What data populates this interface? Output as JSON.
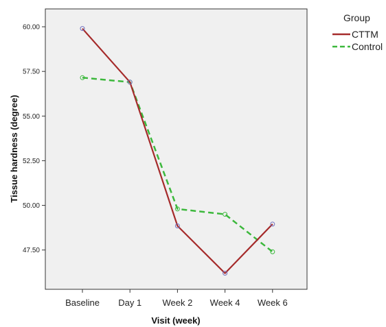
{
  "chart_data": {
    "type": "line",
    "categories": [
      "Baseline",
      "Day 1",
      "Week 2",
      "Week 4",
      "Week 6"
    ],
    "series": [
      {
        "name": "CTTM",
        "values": [
          59.9,
          56.9,
          48.85,
          46.2,
          48.95
        ],
        "color": "#a52a2a",
        "dash": "solid",
        "marker_color": "#6f6fbf"
      },
      {
        "name": "Control",
        "values": [
          57.15,
          56.9,
          49.8,
          49.5,
          47.4
        ],
        "color": "#3cb83c",
        "dash": "dashed",
        "marker_color": "#3cb83c"
      }
    ],
    "xlabel": "Visit (week)",
    "ylabel": "Tissue hardness (degree)",
    "yticks": [
      "60.00",
      "57.50",
      "55.00",
      "52.50",
      "50.00",
      "47.50"
    ],
    "ylim": [
      45.3,
      61.0
    ],
    "legend_title": "Group",
    "legend_position": "top-right",
    "plot_background": "#f0f0f0",
    "grid": false
  }
}
